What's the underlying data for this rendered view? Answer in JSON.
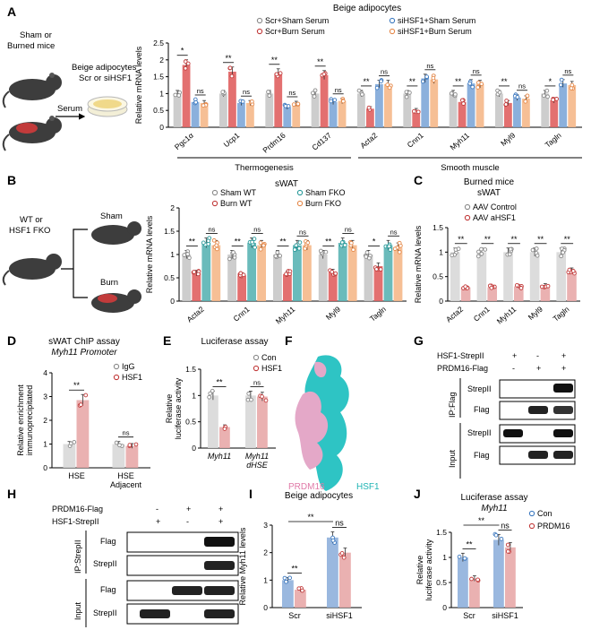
{
  "panel_letters": [
    "A",
    "B",
    "C",
    "D",
    "E",
    "F",
    "G",
    "H",
    "I",
    "J"
  ],
  "colors": {
    "scr_sham": "#c8c8c8",
    "scr_burn": "#e06060",
    "si_sham": "#7ea7d8",
    "si_burn": "#f5b88a",
    "ko_sham": "#5ab4b4",
    "con_grey": "#d0d0d0",
    "pink": "#e8a8a8",
    "blue": "#8fb0dc",
    "teal": "#2ec4c4"
  },
  "schematic_a": {
    "mouse_label": [
      "Sham or",
      "Burned mice"
    ],
    "serum_label": "Serum",
    "dish_label": [
      "Beige adipocytes",
      "Scr or siHSF1"
    ]
  },
  "schematic_b": {
    "left_label": [
      "WT or",
      "HSF1 FKO"
    ],
    "sham_label": "Sham",
    "burn_label": "Burn"
  },
  "chart_data": [
    {
      "panel": "A",
      "type": "bar",
      "title": "Beige adipocytes",
      "ylabel": "Relative mRNA levels",
      "ylim": [
        0,
        2.5
      ],
      "yticks": [
        0,
        0.5,
        1.0,
        1.5,
        2.0,
        2.5
      ],
      "legend": [
        "Scr+Sham Serum",
        "Scr+Burn Serum",
        "siHSF1+Sham Serum",
        "siHSF1+Burn Serum"
      ],
      "categories": [
        "Pgc1α",
        "Ucp1",
        "Prdm16",
        "Cd137",
        "Acta2",
        "Cnn1",
        "Myh11",
        "Myl9",
        "Tagln"
      ],
      "n_groups_per_category": [
        3,
        3,
        3,
        3,
        4,
        4,
        4,
        4,
        4
      ],
      "series": [
        {
          "name": "Scr+Sham Serum",
          "values": [
            1.0,
            1.0,
            1.0,
            1.0,
            1.0,
            1.0,
            1.0,
            1.0,
            1.0
          ]
        },
        {
          "name": "Scr+Burn Serum",
          "values": [
            1.85,
            1.65,
            1.6,
            1.55,
            0.55,
            0.5,
            0.75,
            0.72,
            0.8
          ]
        },
        {
          "name": "siHSF1+Sham Serum",
          "values": [
            0.75,
            0.72,
            0.6,
            0.75,
            1.28,
            1.45,
            1.3,
            0.88,
            1.3
          ]
        },
        {
          "name": "siHSF1+Burn Serum",
          "values": [
            0.72,
            0.72,
            0.7,
            0.78,
            1.28,
            1.42,
            1.28,
            0.85,
            1.25
          ]
        }
      ],
      "significance": [
        "*",
        "ns",
        "**",
        "ns",
        "**",
        "ns",
        "**",
        "ns",
        "**",
        "ns",
        "**",
        "ns",
        "**",
        "ns",
        "**",
        "ns",
        "*",
        "ns"
      ],
      "groups": [
        {
          "label": "Thermogenesis"
        },
        {
          "label": "Smooth muscle"
        }
      ]
    },
    {
      "panel": "B",
      "type": "bar",
      "title": "sWAT",
      "ylabel": "Relative mRNA levels",
      "ylim": [
        0,
        2.0
      ],
      "yticks": [
        0,
        0.5,
        1.0,
        1.5,
        2.0
      ],
      "legend": [
        "Sham WT",
        "Burn WT",
        "Sham FKO",
        "Burn FKO"
      ],
      "categories": [
        "Acta2",
        "Cnn1",
        "Myh11",
        "Myl9",
        "Tagln"
      ],
      "series": [
        {
          "name": "Sham WT",
          "values": [
            1.0,
            1.0,
            1.0,
            1.0,
            1.0
          ]
        },
        {
          "name": "Burn WT",
          "values": [
            0.6,
            0.55,
            0.58,
            0.62,
            0.75
          ]
        },
        {
          "name": "Sham FKO",
          "values": [
            1.25,
            1.25,
            1.2,
            1.25,
            1.2
          ]
        },
        {
          "name": "Burn FKO",
          "values": [
            1.2,
            1.2,
            1.2,
            1.2,
            1.15
          ]
        }
      ],
      "significance": [
        "**",
        "ns",
        "**",
        "ns",
        "**",
        "ns",
        "**",
        "ns",
        "*",
        "ns"
      ]
    },
    {
      "panel": "C",
      "type": "bar",
      "title": "Burned mice",
      "subtitle": "sWAT",
      "ylabel": "Relative mRNA levels",
      "ylim": [
        0,
        1.5
      ],
      "yticks": [
        0,
        0.5,
        1.0,
        1.5
      ],
      "legend": [
        "AAV Control",
        "AAV aHSF1"
      ],
      "categories": [
        "Acta2",
        "Cnn1",
        "Myh11",
        "Myl9",
        "Tagln"
      ],
      "series": [
        {
          "name": "AAV Control",
          "values": [
            1.0,
            1.0,
            1.0,
            1.0,
            1.0
          ]
        },
        {
          "name": "AAV aHSF1",
          "values": [
            0.28,
            0.28,
            0.3,
            0.32,
            0.62
          ]
        }
      ],
      "significance": [
        "**",
        "**",
        "**",
        "**",
        "**"
      ]
    },
    {
      "panel": "D",
      "type": "bar",
      "title": "sWAT ChIP assay",
      "subtitle": "Myh11 Promoter",
      "ylabel": "Relative enrichment immunoprecipitated",
      "ylim": [
        0,
        4
      ],
      "yticks": [
        0,
        1,
        2,
        3,
        4
      ],
      "legend": [
        "IgG",
        "HSF1"
      ],
      "categories": [
        "HSE",
        "HSE Adjacent"
      ],
      "series": [
        {
          "name": "IgG",
          "values": [
            1.0,
            1.0
          ]
        },
        {
          "name": "HSF1",
          "values": [
            2.85,
            0.92
          ]
        }
      ],
      "significance": [
        "**",
        "ns"
      ]
    },
    {
      "panel": "E",
      "type": "bar",
      "title": "Luciferase assay",
      "ylabel": "Relative luciferase activity",
      "ylim": [
        0,
        1.5
      ],
      "yticks": [
        0,
        0.5,
        1.0,
        1.5
      ],
      "legend": [
        "Con",
        "HSF1"
      ],
      "categories": [
        "Myh11",
        "Myh11 dHSE"
      ],
      "series": [
        {
          "name": "Con",
          "values": [
            1.0,
            1.0
          ]
        },
        {
          "name": "HSF1",
          "values": [
            0.4,
            0.98
          ]
        }
      ],
      "significance": [
        "**",
        "ns"
      ]
    },
    {
      "panel": "I",
      "type": "bar",
      "title": "Beige adipocytes",
      "ylabel": "Relative Myh11 levels",
      "ylim": [
        0,
        3
      ],
      "yticks": [
        0,
        1,
        2,
        3
      ],
      "categories": [
        "Scr",
        "siHSF1"
      ],
      "series": [
        {
          "name": "",
          "values": [
            1.0,
            2.55
          ]
        },
        {
          "name": "",
          "values": [
            0.65,
            2.0
          ]
        }
      ],
      "significance": [
        "**",
        "**",
        "ns"
      ]
    },
    {
      "panel": "J",
      "type": "bar",
      "title": "Luciferase assay",
      "subtitle": "Myh11",
      "ylabel": "Relative luciferase activity",
      "ylim": [
        0,
        1.5
      ],
      "yticks": [
        0,
        0.5,
        1.0,
        1.5
      ],
      "legend": [
        "Con",
        "PRDM16"
      ],
      "categories": [
        "Scr",
        "siHSF1"
      ],
      "series": [
        {
          "name": "Con",
          "values": [
            1.0,
            1.35
          ]
        },
        {
          "name": "PRDM16",
          "values": [
            0.58,
            1.2
          ]
        }
      ],
      "significance": [
        "**",
        "**",
        "ns"
      ]
    }
  ],
  "panel_f": {
    "labels": [
      "PRDM16",
      "HSF1"
    ]
  },
  "panel_g": {
    "rows": [
      "HSF1-StrepII",
      "PRDM16-Flag"
    ],
    "signs": [
      [
        "+",
        "-",
        "+"
      ],
      [
        "-",
        "+",
        "+"
      ]
    ],
    "section_ip": "IP:Flag",
    "section_input": "Input",
    "blots": [
      "StrepII",
      "Flag",
      "StrepII",
      "Flag"
    ]
  },
  "panel_h": {
    "rows": [
      "PRDM16-Flag",
      "HSF1-StrepII"
    ],
    "signs": [
      [
        "-",
        "+",
        "+"
      ],
      [
        "+",
        "-",
        "+"
      ]
    ],
    "section_ip": "IP:StrepII",
    "section_input": "Input",
    "blots": [
      "Flag",
      "StrepII",
      "Flag",
      "StrepII"
    ]
  }
}
